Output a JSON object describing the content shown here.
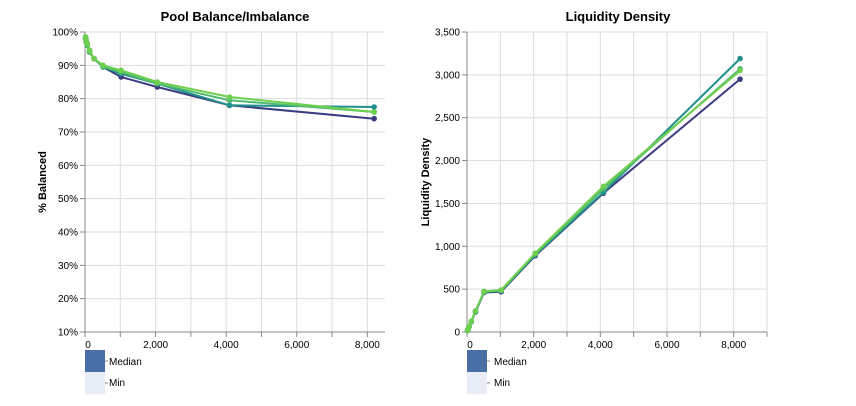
{
  "chart_data": [
    {
      "type": "line",
      "title": "Pool Balance/Imbalance",
      "xlabel": "",
      "ylabel": "% Balanced",
      "xlim": [
        0,
        8500
      ],
      "ylim": [
        10,
        100
      ],
      "x_ticks": [
        "0",
        "2,000",
        "4,000",
        "6,000",
        "8,000"
      ],
      "x_tick_values": [
        0,
        2000,
        4000,
        6000,
        8000
      ],
      "y_ticks": [
        "10%",
        "20%",
        "30%",
        "40%",
        "50%",
        "60%",
        "70%",
        "80%",
        "90%",
        "100%"
      ],
      "y_tick_values": [
        10,
        20,
        30,
        40,
        50,
        60,
        70,
        80,
        90,
        100
      ],
      "grid": true,
      "legend": [
        "Median",
        "Min"
      ],
      "series": [
        {
          "color": "#3b3c82",
          "x": [
            16,
            32,
            64,
            128,
            256,
            512,
            1024,
            2048,
            4096,
            8192
          ],
          "y": [
            98,
            97,
            96,
            94,
            92,
            89.5,
            86.5,
            83.5,
            78,
            74
          ]
        },
        {
          "color": "#21908d",
          "x": [
            16,
            32,
            64,
            128,
            256,
            512,
            1024,
            2048,
            4096,
            8192
          ],
          "y": [
            98.5,
            97.5,
            96.5,
            94.5,
            92,
            89.5,
            87.5,
            84.5,
            78,
            77.5
          ]
        },
        {
          "color": "#4fba6f",
          "x": [
            16,
            32,
            64,
            128,
            256,
            512,
            1024,
            2048,
            4096,
            8192
          ],
          "y": [
            98,
            97,
            96,
            94,
            92,
            89.5,
            88,
            84.5,
            79.5,
            76
          ]
        },
        {
          "color": "#6fcf4f",
          "x": [
            16,
            32,
            64,
            128,
            256,
            512,
            1024,
            2048,
            4096,
            8192
          ],
          "y": [
            98.5,
            97.5,
            96.5,
            94.5,
            92,
            90,
            88.5,
            85,
            80.5,
            76
          ]
        }
      ]
    },
    {
      "type": "line",
      "title": "Liquidity Density",
      "xlabel": "",
      "ylabel": "Liquidity Density",
      "xlim": [
        0,
        9000
      ],
      "ylim": [
        0,
        3500
      ],
      "x_ticks": [
        "0",
        "2,000",
        "4,000",
        "6,000",
        "8,000"
      ],
      "x_tick_values": [
        0,
        2000,
        4000,
        6000,
        8000
      ],
      "y_ticks": [
        "0",
        "500",
        "1,000",
        "1,500",
        "2,000",
        "2,500",
        "3,000",
        "3,500"
      ],
      "y_tick_values": [
        0,
        500,
        1000,
        1500,
        2000,
        2500,
        3000,
        3500
      ],
      "grid": true,
      "legend": [
        "Median",
        "Min"
      ],
      "series": [
        {
          "color": "#3b3c82",
          "x": [
            16,
            32,
            64,
            128,
            256,
            512,
            1024,
            2048,
            4096,
            8192
          ],
          "y": [
            16,
            31,
            62,
            120,
            235,
            460,
            470,
            890,
            1620,
            2950
          ]
        },
        {
          "color": "#21908d",
          "x": [
            16,
            32,
            64,
            128,
            256,
            512,
            1024,
            2048,
            4096,
            8192
          ],
          "y": [
            16,
            32,
            63,
            122,
            240,
            465,
            480,
            900,
            1630,
            3190
          ]
        },
        {
          "color": "#4fba6f",
          "x": [
            16,
            32,
            64,
            128,
            256,
            512,
            1024,
            2048,
            4096,
            8192
          ],
          "y": [
            16,
            32,
            64,
            124,
            245,
            470,
            485,
            910,
            1670,
            3070
          ]
        },
        {
          "color": "#6fcf4f",
          "x": [
            16,
            32,
            64,
            128,
            256,
            512,
            1024,
            2048,
            4096,
            8192
          ],
          "y": [
            16,
            32,
            64,
            125,
            248,
            475,
            490,
            920,
            1700,
            3050
          ]
        }
      ]
    }
  ],
  "legend_colors": [
    "#4a6fa5",
    "#e8edf5"
  ]
}
